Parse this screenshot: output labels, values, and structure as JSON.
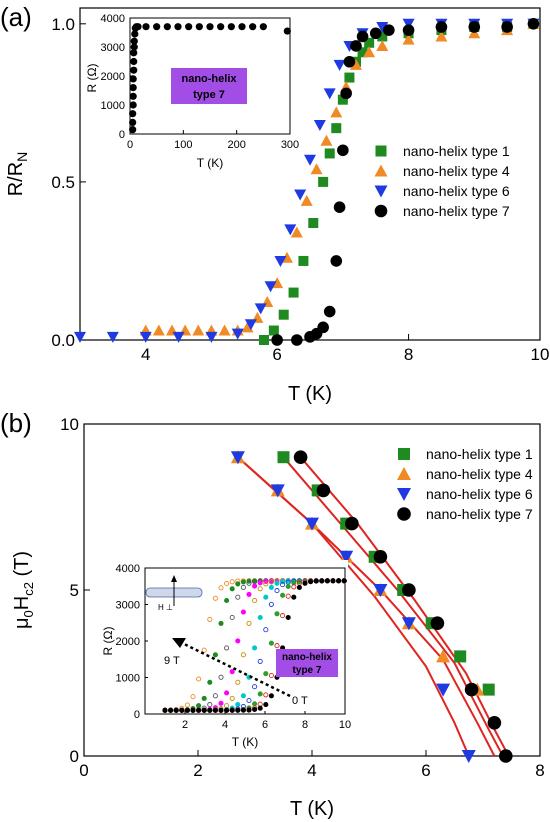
{
  "chart_data": [
    {
      "panel_label": "(a)",
      "type": "scatter",
      "xlabel": "T (K)",
      "ylabel_main": "R/R",
      "ylabel_sub": "N",
      "xlim": [
        3,
        10
      ],
      "ylim": [
        0,
        1.05
      ],
      "xticks": [
        "4",
        "6",
        "8",
        "10"
      ],
      "yticks": [
        "0.0",
        "0.5",
        "1.0"
      ],
      "legend_position": "right-middle",
      "series": [
        {
          "name": "nano-helix type 1",
          "color": "#1f8a1f",
          "marker": "square",
          "x": [
            5.8,
            5.95,
            6.1,
            6.25,
            6.4,
            6.55,
            6.7,
            6.8,
            6.9,
            7.0,
            7.1,
            7.2,
            7.3,
            7.4,
            7.6,
            8.0,
            8.5,
            9.0,
            9.5,
            9.9
          ],
          "y": [
            0.0,
            0.03,
            0.08,
            0.15,
            0.25,
            0.37,
            0.5,
            0.59,
            0.67,
            0.76,
            0.83,
            0.88,
            0.91,
            0.94,
            0.96,
            0.97,
            0.98,
            0.99,
            0.99,
            1.0
          ]
        },
        {
          "name": "nano-helix type 4",
          "color": "#f08a24",
          "marker": "triangle-up",
          "x": [
            4.0,
            4.2,
            4.4,
            4.6,
            4.8,
            5.0,
            5.2,
            5.4,
            5.55,
            5.7,
            5.85,
            6.0,
            6.15,
            6.3,
            6.45,
            6.6,
            6.75,
            6.9,
            7.05,
            7.2,
            7.4,
            7.6,
            8.0,
            8.5,
            9.0,
            9.5,
            9.9
          ],
          "y": [
            0.03,
            0.03,
            0.03,
            0.03,
            0.03,
            0.03,
            0.03,
            0.03,
            0.04,
            0.07,
            0.12,
            0.18,
            0.26,
            0.34,
            0.44,
            0.54,
            0.63,
            0.72,
            0.8,
            0.87,
            0.91,
            0.93,
            0.95,
            0.96,
            0.97,
            0.98,
            1.0
          ]
        },
        {
          "name": "nano-helix type 6",
          "color": "#1f3ae0",
          "marker": "triangle-down",
          "x": [
            3.0,
            3.5,
            4.0,
            4.5,
            5.0,
            5.4,
            5.6,
            5.75,
            5.9,
            6.05,
            6.2,
            6.35,
            6.5,
            6.65,
            6.8,
            6.95,
            7.1,
            7.3,
            7.6,
            8.0,
            8.5,
            9.0,
            9.5,
            9.9
          ],
          "y": [
            0.01,
            0.01,
            0.01,
            0.01,
            0.01,
            0.02,
            0.05,
            0.1,
            0.17,
            0.25,
            0.35,
            0.46,
            0.57,
            0.68,
            0.78,
            0.87,
            0.93,
            0.97,
            0.99,
            1.0,
            1.0,
            1.0,
            1.0,
            1.0
          ]
        },
        {
          "name": "nano-helix type 7",
          "color": "#000000",
          "marker": "circle",
          "x": [
            6.0,
            6.3,
            6.5,
            6.6,
            6.7,
            6.8,
            6.9,
            6.95,
            7.0,
            7.05,
            7.1,
            7.2,
            7.3,
            7.5,
            7.7,
            8.0,
            8.5,
            9.0,
            9.5,
            9.9
          ],
          "y": [
            0.0,
            0.0,
            0.01,
            0.02,
            0.04,
            0.09,
            0.25,
            0.42,
            0.6,
            0.78,
            0.88,
            0.93,
            0.96,
            0.97,
            0.98,
            0.98,
            0.99,
            0.99,
            0.99,
            1.0
          ]
        }
      ],
      "inset": {
        "xlabel": "T (K)",
        "ylabel": "R (Ω)",
        "xlim": [
          0,
          300
        ],
        "ylim": [
          0,
          4000
        ],
        "xticks": [
          "0",
          "100",
          "200",
          "300"
        ],
        "yticks": [
          "0",
          "1000",
          "2000",
          "3000",
          "4000"
        ],
        "label_line1": "nano-helix",
        "label_line2": "type 7",
        "label_color": "#a24ee6",
        "series": {
          "color": "#000000",
          "x": [
            5,
            5,
            5,
            6,
            6,
            6,
            6,
            7,
            7,
            7,
            8,
            8,
            9,
            10,
            12,
            15,
            30,
            50,
            70,
            90,
            110,
            130,
            150,
            170,
            190,
            210,
            230,
            250,
            295
          ],
          "y": [
            150,
            400,
            700,
            1000,
            1300,
            1600,
            1900,
            2200,
            2500,
            2800,
            3000,
            3200,
            3450,
            3650,
            3700,
            3700,
            3700,
            3700,
            3700,
            3700,
            3700,
            3700,
            3700,
            3700,
            3700,
            3700,
            3700,
            3700,
            3550
          ]
        }
      }
    },
    {
      "panel_label": "(b)",
      "type": "scatter",
      "xlabel": "T (K)",
      "ylabel_pre": "μ",
      "ylabel_sub0": "0",
      "ylabel_mid": "H",
      "ylabel_sub1": "c2",
      "ylabel_post": " (T)",
      "xlim": [
        0,
        8
      ],
      "ylim": [
        0,
        10
      ],
      "xticks": [
        "0",
        "2",
        "4",
        "6",
        "8"
      ],
      "yticks": [
        "0",
        "5",
        "10"
      ],
      "legend_position": "top-right",
      "fit_color": "#e0241f",
      "series": [
        {
          "name": "nano-helix type 1",
          "color": "#1f8a1f",
          "marker": "square",
          "x": [
            3.5,
            4.1,
            4.6,
            5.1,
            5.6,
            6.1,
            6.6,
            7.1
          ],
          "y": [
            9,
            8,
            7,
            6,
            5,
            4,
            3,
            2
          ]
        },
        {
          "name": "nano-helix type 4",
          "color": "#f08a24",
          "marker": "triangle-up",
          "x": [
            2.7,
            3.4,
            4.0,
            4.6,
            5.2,
            5.7,
            6.3,
            6.9
          ],
          "y": [
            9,
            8,
            7,
            6,
            5,
            4,
            3,
            2
          ]
        },
        {
          "name": "nano-helix type 6",
          "color": "#1f3ae0",
          "marker": "triangle-down",
          "x": [
            2.7,
            3.4,
            4.0,
            4.6,
            5.2,
            5.7,
            6.3,
            6.75
          ],
          "y": [
            9,
            8,
            7,
            6,
            5,
            4,
            2,
            0
          ]
        },
        {
          "name": "nano-helix type 7",
          "color": "#000000",
          "marker": "circle",
          "x": [
            3.8,
            4.2,
            4.7,
            5.2,
            5.7,
            6.2,
            6.8,
            7.2,
            7.4
          ],
          "y": [
            9,
            8,
            7,
            6,
            5,
            4,
            2,
            1,
            0
          ]
        }
      ],
      "fits": [
        {
          "x": [
            3.5,
            4.5,
            5.5,
            6.5,
            7.1,
            7.35
          ],
          "y": [
            9.0,
            7.0,
            5.0,
            2.8,
            0.8,
            0.0
          ]
        },
        {
          "x": [
            2.7,
            4.0,
            5.2,
            6.3,
            6.9,
            7.2
          ],
          "y": [
            9.0,
            7.0,
            5.0,
            2.9,
            1.0,
            0.0
          ]
        },
        {
          "x": [
            2.7,
            4.0,
            5.1,
            6.0,
            6.5,
            6.75
          ],
          "y": [
            9.0,
            7.0,
            4.8,
            2.7,
            1.0,
            0.0
          ]
        },
        {
          "x": [
            3.8,
            4.8,
            5.8,
            6.7,
            7.2,
            7.45
          ],
          "y": [
            9.0,
            7.0,
            4.7,
            2.5,
            0.8,
            0.0
          ]
        }
      ],
      "inset": {
        "xlabel": "T (K)",
        "ylabel": "R (Ω)",
        "xlim": [
          0,
          10
        ],
        "ylim": [
          0,
          4000
        ],
        "xticks": [
          "2",
          "4",
          "6",
          "8",
          "10"
        ],
        "yticks": [
          "0",
          "1000",
          "2000",
          "3000",
          "4000"
        ],
        "arrow_start_label": "9 T",
        "arrow_end_label": "0 T",
        "field_label": "H ⊥",
        "label_line1": "nano-helix",
        "label_line2": "type 7",
        "label_color": "#a24ee6",
        "curve_colors": [
          "#f08a24",
          "#1f8a1f",
          "#555555",
          "#ff00ff",
          "#c88a00",
          "#00c8c8",
          "#1f3ae0",
          "#2aa02a",
          "#e0241f",
          "#000000"
        ],
        "curve_midpoints": [
          3.0,
          3.6,
          4.1,
          4.6,
          5.0,
          5.5,
          5.9,
          6.3,
          6.6,
          6.9
        ]
      }
    }
  ]
}
